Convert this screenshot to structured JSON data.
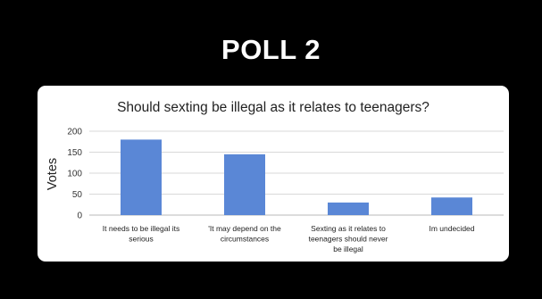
{
  "slide": {
    "title": "POLL 2"
  },
  "colors": {
    "background": "#000000",
    "bar": "#5a87d6",
    "card": "#ffffff"
  },
  "chart_data": {
    "type": "bar",
    "title": "Should sexting be illegal as it relates to teenagers?",
    "xlabel": "",
    "ylabel": "Votes",
    "ylim": [
      0,
      200
    ],
    "yticks": [
      0,
      50,
      100,
      150,
      200
    ],
    "grid": true,
    "legend": "none",
    "categories": [
      [
        "It needs to be illegal its",
        "serious"
      ],
      [
        "'It may depend on the",
        "circumstances"
      ],
      [
        "Sexting as it relates to",
        "teenagers should never",
        "be illegal"
      ],
      [
        "Im undecided"
      ]
    ],
    "values": [
      180,
      145,
      30,
      42
    ]
  }
}
